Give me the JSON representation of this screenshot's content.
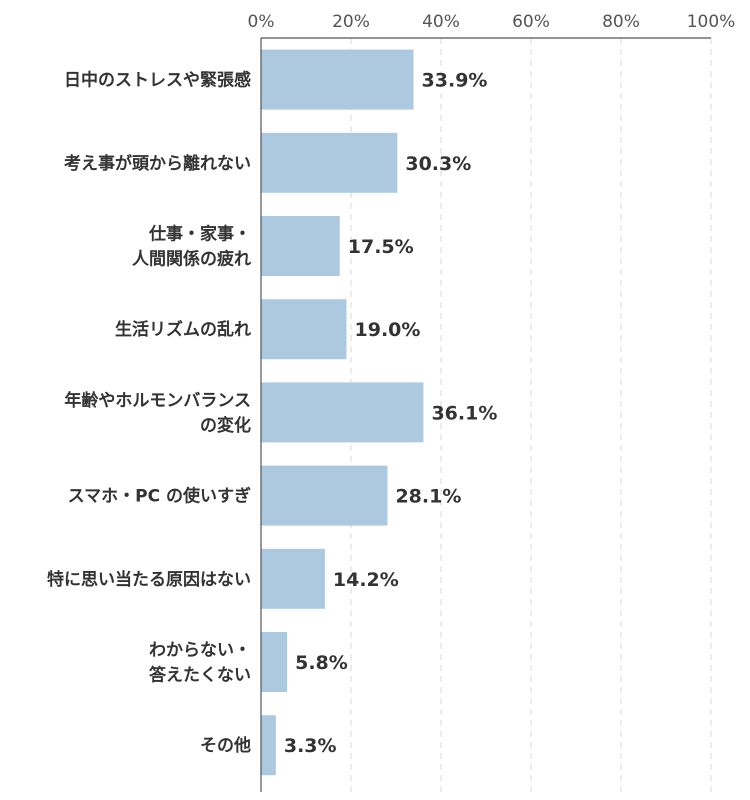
{
  "chart_data": {
    "type": "bar",
    "orientation": "horizontal",
    "categories": [
      [
        "日中のストレスや緊張感"
      ],
      [
        "考え事が頭から離れない"
      ],
      [
        "仕事・家事・",
        "人間関係の疲れ"
      ],
      [
        "生活リズムの乱れ"
      ],
      [
        "年齢やホルモンバランス",
        "の変化"
      ],
      [
        "スマホ・PC の使いすぎ"
      ],
      [
        "特に思い当たる原因はない"
      ],
      [
        "わからない・",
        "答えたくない"
      ],
      [
        "その他"
      ]
    ],
    "values": [
      33.9,
      30.3,
      17.5,
      19.0,
      36.1,
      28.1,
      14.2,
      5.8,
      3.3
    ],
    "value_labels": [
      "33.9%",
      "30.3%",
      "17.5%",
      "19.0%",
      "36.1%",
      "28.1%",
      "14.2%",
      "5.8%",
      "3.3%"
    ],
    "xlim": [
      0,
      100
    ],
    "x_ticks": [
      0,
      20,
      40,
      60,
      80,
      100
    ],
    "x_tick_labels": [
      "0%",
      "20%",
      "40%",
      "60%",
      "80%",
      "100%"
    ],
    "x_axis_position": "top",
    "grid": true,
    "colors": {
      "bar": "#adc9e0",
      "text": "#333333",
      "axis": "#555555",
      "grid": "#d8d8d8"
    }
  }
}
